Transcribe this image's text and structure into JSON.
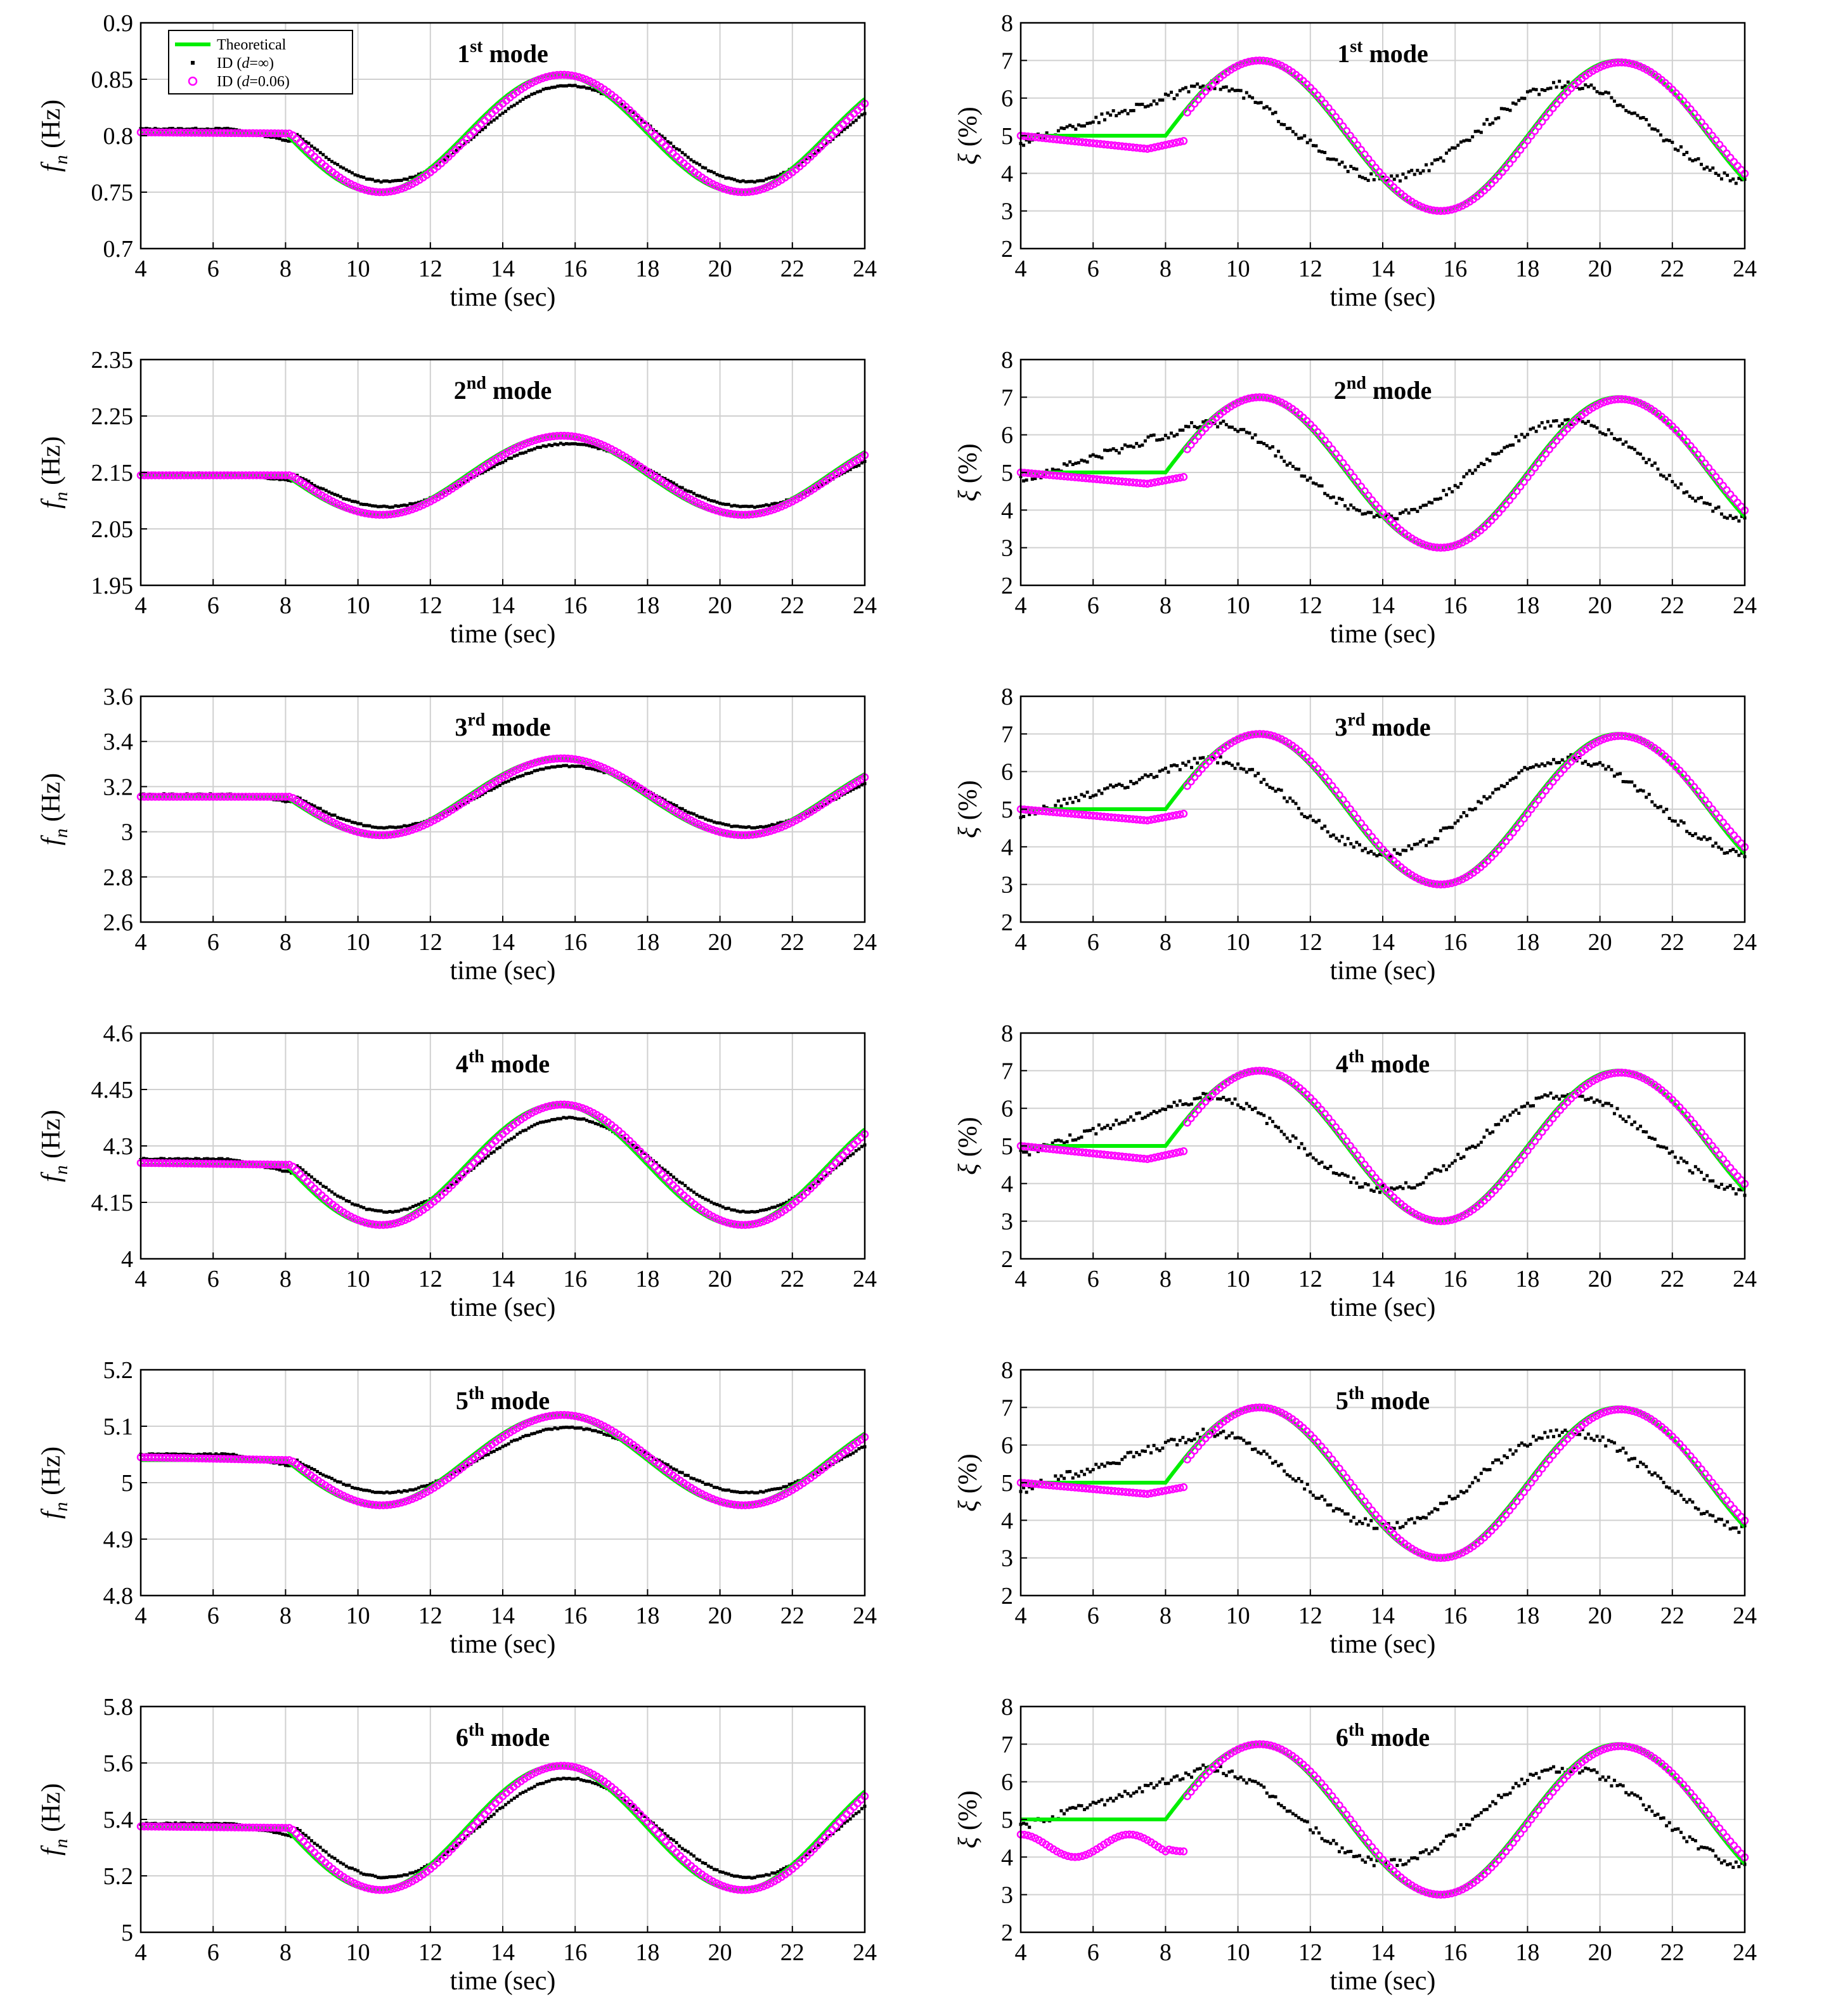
{
  "legend": {
    "entries": [
      {
        "name": "Theoretical",
        "color": "#00ee00",
        "marker": "line"
      },
      {
        "name": "ID (",
        "var": "d",
        "rest": "=∞)",
        "color": "#000000",
        "marker": "dot"
      },
      {
        "name": "ID (",
        "var": "d",
        "rest": "=0.06)",
        "color": "#ff00ff",
        "marker": "circle"
      }
    ]
  },
  "series_colors": {
    "theoretical": "#00ee00",
    "id_inf": "#000000",
    "id_006": "#ff00ff"
  },
  "chart_data": [
    {
      "type": "line",
      "row": 0,
      "col": 0,
      "quantity": "freq",
      "title_base": "1",
      "title_sup": "st",
      "title_rest": " mode",
      "xlabel": "time (sec)",
      "ylabel_main": "f",
      "ylabel_sub": "n",
      "ylabel_rest": " (Hz)",
      "xlim": [
        4,
        24
      ],
      "ylim": [
        0.7,
        0.9
      ],
      "xticks": [
        4,
        6,
        8,
        10,
        12,
        14,
        16,
        18,
        20,
        22,
        24
      ],
      "yticks": [
        0.7,
        0.75,
        0.8,
        0.85,
        0.9
      ],
      "ytick_labels": [
        "0.7",
        "0.75",
        "0.8",
        "0.85",
        "0.9"
      ],
      "base": 0.802,
      "amp": 0.052,
      "id_inf_amp_ratio": 0.82,
      "id_inf_start": 0.806,
      "id_006_start": 0.803,
      "legend": true
    },
    {
      "type": "line",
      "row": 0,
      "col": 1,
      "quantity": "damp",
      "title_base": "1",
      "title_sup": "st",
      "title_rest": " mode",
      "xlabel": "time (sec)",
      "ylabel_main": "ξ",
      "ylabel_rest": " (%)",
      "xlim": [
        4,
        24
      ],
      "ylim": [
        2,
        8
      ],
      "xticks": [
        4,
        6,
        8,
        10,
        12,
        14,
        16,
        18,
        20,
        22,
        24
      ],
      "yticks": [
        2,
        3,
        4,
        5,
        6,
        7,
        8
      ],
      "ytick_labels": [
        "2",
        "3",
        "4",
        "5",
        "6",
        "7",
        "8"
      ],
      "base": 5,
      "amp": 2,
      "id_006_dip": 0.35,
      "legend": false
    },
    {
      "type": "line",
      "row": 1,
      "col": 0,
      "quantity": "freq",
      "title_base": "2",
      "title_sup": "nd",
      "title_rest": " mode",
      "xlabel": "time (sec)",
      "ylabel_main": "f",
      "ylabel_sub": "n",
      "ylabel_rest": " (Hz)",
      "xlim": [
        4,
        24
      ],
      "ylim": [
        1.95,
        2.35
      ],
      "xticks": [
        4,
        6,
        8,
        10,
        12,
        14,
        16,
        18,
        20,
        22,
        24
      ],
      "yticks": [
        1.95,
        2.05,
        2.15,
        2.25,
        2.35
      ],
      "ytick_labels": [
        "1.95",
        "2.05",
        "2.15",
        "2.25",
        "2.35"
      ],
      "base": 2.145,
      "amp": 0.07,
      "id_inf_amp_ratio": 0.8,
      "id_inf_start": 2.148,
      "id_006_start": 2.145,
      "legend": false
    },
    {
      "type": "line",
      "row": 1,
      "col": 1,
      "quantity": "damp",
      "title_base": "2",
      "title_sup": "nd",
      "title_rest": " mode",
      "xlabel": "time (sec)",
      "ylabel_main": "ξ",
      "ylabel_rest": " (%)",
      "xlim": [
        4,
        24
      ],
      "ylim": [
        2,
        8
      ],
      "xticks": [
        4,
        6,
        8,
        10,
        12,
        14,
        16,
        18,
        20,
        22,
        24
      ],
      "yticks": [
        2,
        3,
        4,
        5,
        6,
        7,
        8
      ],
      "ytick_labels": [
        "2",
        "3",
        "4",
        "5",
        "6",
        "7",
        "8"
      ],
      "base": 5,
      "amp": 2,
      "id_006_dip": 0.3,
      "legend": false
    },
    {
      "type": "line",
      "row": 2,
      "col": 0,
      "quantity": "freq",
      "title_base": "3",
      "title_sup": "rd",
      "title_rest": " mode",
      "xlabel": "time (sec)",
      "ylabel_main": "f",
      "ylabel_sub": "n",
      "ylabel_rest": " (Hz)",
      "xlim": [
        4,
        24
      ],
      "ylim": [
        2.6,
        3.6
      ],
      "xticks": [
        4,
        6,
        8,
        10,
        12,
        14,
        16,
        18,
        20,
        22,
        24
      ],
      "yticks": [
        2.6,
        2.8,
        3.0,
        3.2,
        3.4,
        3.6
      ],
      "ytick_labels": [
        "2.6",
        "2.8",
        "3",
        "3.2",
        "3.4",
        "3.6"
      ],
      "base": 3.155,
      "amp": 0.17,
      "id_inf_amp_ratio": 0.8,
      "id_inf_start": 3.165,
      "id_006_start": 3.155,
      "legend": false
    },
    {
      "type": "line",
      "row": 2,
      "col": 1,
      "quantity": "damp",
      "title_base": "3",
      "title_sup": "rd",
      "title_rest": " mode",
      "xlabel": "time (sec)",
      "ylabel_main": "ξ",
      "ylabel_rest": " (%)",
      "xlim": [
        4,
        24
      ],
      "ylim": [
        2,
        8
      ],
      "xticks": [
        4,
        6,
        8,
        10,
        12,
        14,
        16,
        18,
        20,
        22,
        24
      ],
      "yticks": [
        2,
        3,
        4,
        5,
        6,
        7,
        8
      ],
      "ytick_labels": [
        "2",
        "3",
        "4",
        "5",
        "6",
        "7",
        "8"
      ],
      "base": 5,
      "amp": 2,
      "id_006_dip": 0.3,
      "legend": false
    },
    {
      "type": "line",
      "row": 3,
      "col": 0,
      "quantity": "freq",
      "title_base": "4",
      "title_sup": "th",
      "title_rest": " mode",
      "xlabel": "time (sec)",
      "ylabel_main": "f",
      "ylabel_sub": "n",
      "ylabel_rest": " (Hz)",
      "xlim": [
        4,
        24
      ],
      "ylim": [
        4.0,
        4.6
      ],
      "xticks": [
        4,
        6,
        8,
        10,
        12,
        14,
        16,
        18,
        20,
        22,
        24
      ],
      "yticks": [
        4.0,
        4.15,
        4.3,
        4.45,
        4.6
      ],
      "ytick_labels": [
        "4",
        "4.15",
        "4.3",
        "4.45",
        "4.6"
      ],
      "base": 4.25,
      "amp": 0.16,
      "id_inf_amp_ratio": 0.78,
      "id_inf_start": 4.265,
      "id_006_start": 4.255,
      "legend": false
    },
    {
      "type": "line",
      "row": 3,
      "col": 1,
      "quantity": "damp",
      "title_base": "4",
      "title_sup": "th",
      "title_rest": " mode",
      "xlabel": "time (sec)",
      "ylabel_main": "ξ",
      "ylabel_rest": " (%)",
      "xlim": [
        4,
        24
      ],
      "ylim": [
        2,
        8
      ],
      "xticks": [
        4,
        6,
        8,
        10,
        12,
        14,
        16,
        18,
        20,
        22,
        24
      ],
      "yticks": [
        2,
        3,
        4,
        5,
        6,
        7,
        8
      ],
      "ytick_labels": [
        "2",
        "3",
        "4",
        "5",
        "6",
        "7",
        "8"
      ],
      "base": 5,
      "amp": 2,
      "id_006_dip": 0.35,
      "legend": false
    },
    {
      "type": "line",
      "row": 4,
      "col": 0,
      "quantity": "freq",
      "title_base": "5",
      "title_sup": "th",
      "title_rest": " mode",
      "xlabel": "time (sec)",
      "ylabel_main": "f",
      "ylabel_sub": "n",
      "ylabel_rest": " (Hz)",
      "xlim": [
        4,
        24
      ],
      "ylim": [
        4.8,
        5.2
      ],
      "xticks": [
        4,
        6,
        8,
        10,
        12,
        14,
        16,
        18,
        20,
        22,
        24
      ],
      "yticks": [
        4.8,
        4.9,
        5.0,
        5.1,
        5.2
      ],
      "ytick_labels": [
        "4.8",
        "4.9",
        "5",
        "5.1",
        "5.2"
      ],
      "base": 5.04,
      "amp": 0.08,
      "id_inf_amp_ratio": 0.72,
      "id_inf_start": 5.05,
      "id_006_start": 5.045,
      "legend": false
    },
    {
      "type": "line",
      "row": 4,
      "col": 1,
      "quantity": "damp",
      "title_base": "5",
      "title_sup": "th",
      "title_rest": " mode",
      "xlabel": "time (sec)",
      "ylabel_main": "ξ",
      "ylabel_rest": " (%)",
      "xlim": [
        4,
        24
      ],
      "ylim": [
        2,
        8
      ],
      "xticks": [
        4,
        6,
        8,
        10,
        12,
        14,
        16,
        18,
        20,
        22,
        24
      ],
      "yticks": [
        2,
        3,
        4,
        5,
        6,
        7,
        8
      ],
      "ytick_labels": [
        "2",
        "3",
        "4",
        "5",
        "6",
        "7",
        "8"
      ],
      "base": 5,
      "amp": 2,
      "id_006_dip": 0.3,
      "legend": false
    },
    {
      "type": "line",
      "row": 5,
      "col": 0,
      "quantity": "freq",
      "title_base": "6",
      "title_sup": "th",
      "title_rest": " mode",
      "xlabel": "time (sec)",
      "ylabel_main": "f",
      "ylabel_sub": "n",
      "ylabel_rest": " (Hz)",
      "xlim": [
        4,
        24
      ],
      "ylim": [
        5.0,
        5.8
      ],
      "xticks": [
        4,
        6,
        8,
        10,
        12,
        14,
        16,
        18,
        20,
        22,
        24
      ],
      "yticks": [
        5.0,
        5.2,
        5.4,
        5.6,
        5.8
      ],
      "ytick_labels": [
        "5",
        "5.2",
        "5.4",
        "5.6",
        "5.8"
      ],
      "base": 5.37,
      "amp": 0.22,
      "id_inf_amp_ratio": 0.8,
      "id_inf_start": 5.385,
      "id_006_start": 5.375,
      "legend": false
    },
    {
      "type": "line",
      "row": 5,
      "col": 1,
      "quantity": "damp",
      "title_base": "6",
      "title_sup": "th",
      "title_rest": " mode",
      "xlabel": "time (sec)",
      "ylabel_main": "ξ",
      "ylabel_rest": " (%)",
      "xlim": [
        4,
        24
      ],
      "ylim": [
        2,
        8
      ],
      "xticks": [
        4,
        6,
        8,
        10,
        12,
        14,
        16,
        18,
        20,
        22,
        24
      ],
      "yticks": [
        2,
        3,
        4,
        5,
        6,
        7,
        8
      ],
      "ytick_labels": [
        "2",
        "3",
        "4",
        "5",
        "6",
        "7",
        "8"
      ],
      "base": 5,
      "amp": 2,
      "id_006_dip": 0.8,
      "legend": false
    }
  ]
}
